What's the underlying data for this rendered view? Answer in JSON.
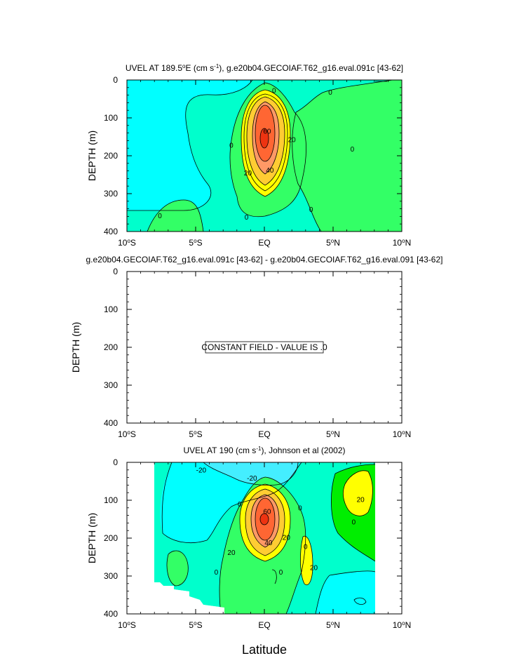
{
  "figure": {
    "xlabel": "Latitude"
  },
  "colors": {
    "cyan": "#00FFFF",
    "aqua_green": "#00FFCC",
    "light_green": "#33FF66",
    "green": "#00EE00",
    "yellow": "#FFFF00",
    "gold": "#FFCC33",
    "orange": "#FF9966",
    "red_orange": "#FF6633",
    "red": "#EE3311",
    "light_blue": "#44EEFF"
  },
  "chart_data": [
    {
      "type": "contour",
      "title_main": "UVEL AT 189.5",
      "title_deg": "o",
      "title_mid": "E (cm s",
      "title_sup": "-1",
      "title_end": "), g.e20b04.GECOIAF.T62_g16.eval.091c [43-62]",
      "ylabel": "DEPTH (m)",
      "x_ticks": [
        {
          "v": -10,
          "hem": "S"
        },
        {
          "v": -5,
          "hem": "S"
        },
        {
          "v": 0,
          "label": "EQ"
        },
        {
          "v": 5,
          "hem": "N"
        },
        {
          "v": 10,
          "hem": "N"
        }
      ],
      "y_ticks": [
        0,
        100,
        200,
        300,
        400
      ],
      "xlim": [
        -10,
        10
      ],
      "ylim": [
        400,
        0
      ],
      "contour_interval": 10,
      "core": {
        "lat": 0,
        "depth": 160,
        "max": 60
      },
      "contour_labels": [
        {
          "text": "0",
          "lat": 0.7,
          "depth": 28
        },
        {
          "text": "0",
          "lat": 4.8,
          "depth": 32
        },
        {
          "text": "0",
          "lat": -2.4,
          "depth": 172
        },
        {
          "text": "0",
          "lat": 6.4,
          "depth": 182
        },
        {
          "text": "0",
          "lat": -7.6,
          "depth": 358
        },
        {
          "text": "0",
          "lat": -1.3,
          "depth": 362
        },
        {
          "text": "0",
          "lat": 3.4,
          "depth": 342
        },
        {
          "text": "20",
          "lat": 2.0,
          "depth": 157
        },
        {
          "text": "20",
          "lat": -1.2,
          "depth": 245
        },
        {
          "text": "40",
          "lat": 0.4,
          "depth": 238
        },
        {
          "text": "60",
          "lat": 0.2,
          "depth": 135
        }
      ]
    },
    {
      "type": "difference",
      "title": "g.e20b04.GECOIAF.T62_g16.eval.091c [43-62] - g.e20b04.GECOIAF.T62_g16.eval.091 [43-62]",
      "ylabel": "DEPTH (m)",
      "x_ticks": [
        {
          "v": -10,
          "hem": "S"
        },
        {
          "v": -5,
          "hem": "S"
        },
        {
          "v": 0,
          "label": "EQ"
        },
        {
          "v": 5,
          "hem": "N"
        },
        {
          "v": 10,
          "hem": "N"
        }
      ],
      "y_ticks": [
        0,
        100,
        200,
        300,
        400
      ],
      "xlim": [
        -10,
        10
      ],
      "ylim": [
        400,
        0
      ],
      "annotation": "CONSTANT FIELD - VALUE IS .0"
    },
    {
      "type": "contour",
      "title_main": "UVEL AT 190 (cm s",
      "title_sup": "-1",
      "title_end": "), Johnson et al (2002)",
      "ylabel": "DEPTH (m)",
      "x_ticks": [
        {
          "v": -10,
          "hem": "S"
        },
        {
          "v": -5,
          "hem": "S"
        },
        {
          "v": 0,
          "label": "EQ"
        },
        {
          "v": 5,
          "hem": "N"
        },
        {
          "v": 10,
          "hem": "N"
        }
      ],
      "y_ticks": [
        0,
        100,
        200,
        300,
        400
      ],
      "xlim": [
        -10,
        10
      ],
      "ylim": [
        400,
        0
      ],
      "data_lat_range": [
        -8,
        8
      ],
      "contour_interval": 10,
      "core": {
        "lat": 0,
        "depth": 150,
        "max": 60
      },
      "contour_labels": [
        {
          "text": "-20",
          "lat": -4.6,
          "depth": 20
        },
        {
          "text": "-20",
          "lat": -0.9,
          "depth": 42
        },
        {
          "text": "0",
          "lat": -1.8,
          "depth": 110
        },
        {
          "text": "0",
          "lat": 2.6,
          "depth": 120
        },
        {
          "text": "0",
          "lat": 6.5,
          "depth": 157
        },
        {
          "text": "0",
          "lat": 3.0,
          "depth": 222
        },
        {
          "text": "0",
          "lat": -3.5,
          "depth": 290
        },
        {
          "text": "0",
          "lat": 1.2,
          "depth": 290
        },
        {
          "text": "20",
          "lat": -2.4,
          "depth": 238
        },
        {
          "text": "20",
          "lat": 1.6,
          "depth": 198
        },
        {
          "text": "20",
          "lat": 3.6,
          "depth": 278
        },
        {
          "text": "20",
          "lat": 7.0,
          "depth": 98
        },
        {
          "text": "40",
          "lat": 0.3,
          "depth": 212
        },
        {
          "text": "60",
          "lat": 0.2,
          "depth": 130
        }
      ]
    }
  ]
}
